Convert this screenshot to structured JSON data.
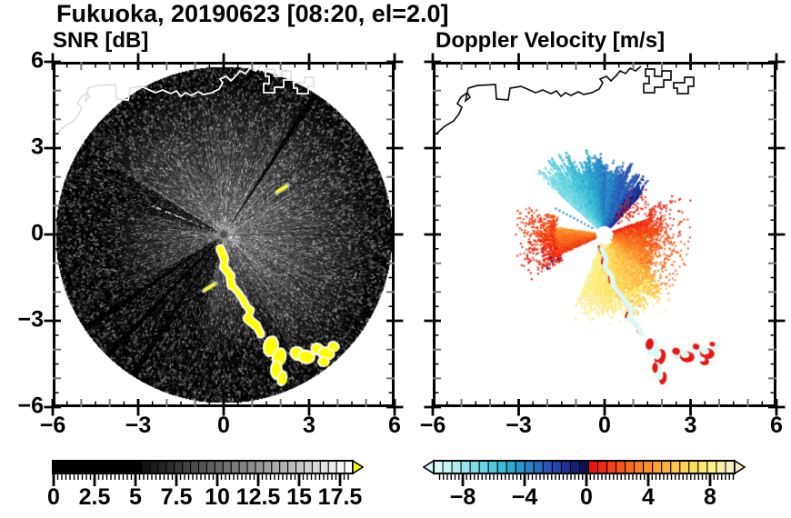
{
  "title": "Fukuoka, 20190623 [08:20, el=2.0]",
  "panels": {
    "snr": {
      "subtitle": "SNR [dB]",
      "x_tick_labels": [
        "−6",
        "−3",
        "0",
        "3",
        "6"
      ],
      "y_tick_labels": [
        "6",
        "3",
        "0",
        "−3",
        "−6"
      ]
    },
    "doppler": {
      "subtitle": "Doppler Velocity [m/s]",
      "x_tick_labels": [
        "−6",
        "−3",
        "0",
        "3",
        "6"
      ]
    }
  },
  "colorbars": {
    "snr": {
      "tick_labels": [
        "0",
        "2.5",
        "5",
        "7.5",
        "10",
        "12.5",
        "15",
        "17.5"
      ],
      "tick_values": [
        0,
        2.5,
        5,
        7.5,
        10,
        12.5,
        15,
        17.5
      ],
      "min": 0,
      "max": 18.3,
      "overflow_color": "#ffff00",
      "cells": [
        "#000000",
        "#000000",
        "#000000",
        "#000000",
        "#000000",
        "#000000",
        "#000000",
        "#000000",
        "#000000",
        "#000000",
        "#000000",
        "#121212",
        "#1b1b1b",
        "#252525",
        "#2e2e2e",
        "#383838",
        "#414141",
        "#4b4b4b",
        "#545454",
        "#5e5e5e",
        "#676767",
        "#717171",
        "#7a7a7a",
        "#848484",
        "#8d8d8d",
        "#979797",
        "#a0a0a0",
        "#aaaaaa",
        "#b3b3b3",
        "#bdbdbd",
        "#c6c6c6",
        "#d0d0d0",
        "#d9d9d9",
        "#e3e3e3",
        "#ececec",
        "#f6f6f6",
        "#ffffff"
      ]
    },
    "doppler": {
      "tick_labels": [
        "−8",
        "−4",
        "0",
        "4",
        "8"
      ],
      "tick_values": [
        -8,
        -4,
        0,
        4,
        8
      ],
      "min": -10,
      "max": 10,
      "underflow_color": "#dcf8f7",
      "overflow_color": "#f4efc0",
      "cells": [
        "#dcf8f7",
        "#c6f2f3",
        "#b0ebee",
        "#99e4ea",
        "#82dce6",
        "#69d3e1",
        "#4fc9dc",
        "#38bcd7",
        "#2fa9d1",
        "#2b95ca",
        "#2a80c3",
        "#2a6cbc",
        "#2a57b5",
        "#2744ab",
        "#1f3194",
        "#162076",
        "#0c1254",
        "#e81511",
        "#ed2b12",
        "#f14115",
        "#f55619",
        "#f76a1e",
        "#f97e25",
        "#fb912c",
        "#fca334",
        "#fdb43d",
        "#fdc447",
        "#fed352",
        "#fee05f",
        "#feeb71",
        "#fdf18a",
        "#f9f1a5",
        "#f4efc0"
      ]
    }
  },
  "chart_data": [
    {
      "type": "heatmap",
      "subtype": "doppler-lidar-ppi-scan",
      "panel": "left",
      "title": "SNR [dB]",
      "site": "Fukuoka",
      "date": "20190623",
      "time": "08:20",
      "elevation_deg": 2.0,
      "x_range": [
        -6,
        6
      ],
      "y_range": [
        -6,
        6
      ],
      "axis_major_tick_step": 3,
      "axis_minor_tick_step": 0.5,
      "scan_radius": 5.9,
      "colorbar_ticks": [
        0,
        2.5,
        5,
        7.5,
        10,
        12.5,
        15,
        17.5
      ],
      "colorbar_range": [
        0,
        18.3
      ],
      "features": {
        "disk_background": "near-black noise speckle",
        "coastline_color": "#ffffff",
        "haze_sectors": [
          {
            "az_deg": [
              300,
              150
            ],
            "strength": 0.72,
            "reach_r": 170
          },
          {
            "az_deg": [
              150,
              195
            ],
            "strength": 0.55,
            "reach_r": 130
          },
          {
            "az_deg": [
              240,
              285
            ],
            "strength": 0.5,
            "reach_r": 130
          }
        ],
        "shadow_sectors": [
          {
            "az_deg": [
              195,
              240
            ]
          },
          {
            "az_deg": [
              285,
              302
            ]
          }
        ],
        "dark_rays_az_deg": [
          33,
          213,
          224,
          236
        ],
        "bright_dotted_ray_az_deg": 292,
        "streak_color": "#ffff00",
        "clutter_streak_km": [
          [
            -0.1,
            -0.5
          ],
          [
            0.05,
            -0.85
          ],
          [
            0.0,
            -1.15
          ],
          [
            0.25,
            -1.45
          ],
          [
            0.3,
            -1.8
          ],
          [
            0.55,
            -2.1
          ],
          [
            0.75,
            -2.4
          ],
          [
            0.95,
            -2.65
          ],
          [
            0.85,
            -2.95
          ],
          [
            1.15,
            -3.2
          ],
          [
            1.3,
            -3.5
          ]
        ],
        "clutter_blobs_km": [
          [
            1.66,
            -3.93,
            7,
            10,
            0.2
          ],
          [
            1.95,
            -4.31,
            6,
            9,
            0.3
          ],
          [
            1.85,
            -4.76,
            5,
            9,
            0.0
          ],
          [
            2.05,
            -5.05,
            4,
            7,
            0.2
          ],
          [
            2.59,
            -4.18,
            7,
            6,
            0.5
          ],
          [
            2.9,
            -4.3,
            8,
            6,
            0.1
          ],
          [
            3.29,
            -4.02,
            6,
            5,
            0.4
          ],
          [
            3.6,
            -4.18,
            8,
            6,
            0.15
          ],
          [
            3.86,
            -3.93,
            5,
            4,
            0.3
          ],
          [
            3.51,
            -4.47,
            5,
            4,
            0.0
          ]
        ],
        "small_dashes_km": [
          [
            2.05,
            1.6
          ],
          [
            -0.5,
            -1.85
          ]
        ]
      }
    },
    {
      "type": "scatter",
      "subtype": "doppler-lidar-ppi-scan",
      "panel": "right",
      "title": "Doppler Velocity [m/s]",
      "site": "Fukuoka",
      "date": "20190623",
      "time": "08:20",
      "elevation_deg": 2.0,
      "x_range": [
        -6,
        6
      ],
      "y_range": [
        -6,
        6
      ],
      "axis_major_tick_step": 3,
      "axis_minor_tick_step": 0.5,
      "colorbar_ticks": [
        -8,
        -4,
        0,
        4,
        8
      ],
      "colorbar_range": [
        -10,
        10
      ],
      "features": {
        "coastline_color": "#111111",
        "center_hole_radius_km": 0.28,
        "fans": [
          {
            "az_deg": [
              -48,
              -20
            ],
            "r_km": [
              0.3,
              2.8
            ],
            "v_mps": [
              -7.5,
              -5.2
            ],
            "n": 2400
          },
          {
            "az_deg": [
              -20,
              2
            ],
            "r_km": [
              0.3,
              2.6
            ],
            "v_mps": [
              -5.5,
              -3.2
            ],
            "n": 2000
          },
          {
            "az_deg": [
              2,
              22
            ],
            "r_km": [
              0.3,
              2.3
            ],
            "v_mps": [
              -4.2,
              -2.2
            ],
            "n": 1500
          },
          {
            "az_deg": [
              22,
              42
            ],
            "r_km": [
              0.3,
              2.1
            ],
            "v_mps": [
              -3.2,
              -0.8
            ],
            "n": 1200
          },
          {
            "az_deg": [
              246,
              278
            ],
            "r_km": [
              0.3,
              2.1
            ],
            "v_mps": [
              1.6,
              4.4
            ],
            "n": 1700
          },
          {
            "az_deg": [
              238,
              290
            ],
            "r_km": [
              1.7,
              3.0
            ],
            "v_mps": [
              0.6,
              2.2
            ],
            "n": 450,
            "sparse": true
          },
          {
            "az_deg": [
              70,
              130
            ],
            "r_km": [
              0.3,
              1.8
            ],
            "v_mps": [
              1.2,
              4.8
            ],
            "n": 1500
          },
          {
            "az_deg": [
              60,
              135
            ],
            "r_km": [
              1.5,
              3.0
            ],
            "v_mps": [
              0.8,
              4.0
            ],
            "n": 320,
            "sparse": true
          },
          {
            "az_deg": [
              130,
              202
            ],
            "r_km": [
              0.35,
              2.6
            ],
            "v_mps": [
              5.2,
              8.8
            ],
            "n": 2800
          },
          {
            "az_deg": [
              135,
              200
            ],
            "r_km": [
              2.2,
              3.2
            ],
            "v_mps": [
              7.6,
              9.5
            ],
            "n": 280,
            "sparse": true
          },
          {
            "az_deg": [
              30,
              60
            ],
            "r_km": [
              0.5,
              2.0
            ],
            "v_mps": [
              0.3,
              1.2
            ],
            "n": 70,
            "sparse": true
          }
        ],
        "dotted_ray": {
          "az_deg": -62,
          "r_km": [
            0.5,
            2.0
          ],
          "v_mps": -4
        },
        "aliased_streak_v_mps": -9.5,
        "streak_fringe_v_mps": 0.6
      }
    }
  ]
}
